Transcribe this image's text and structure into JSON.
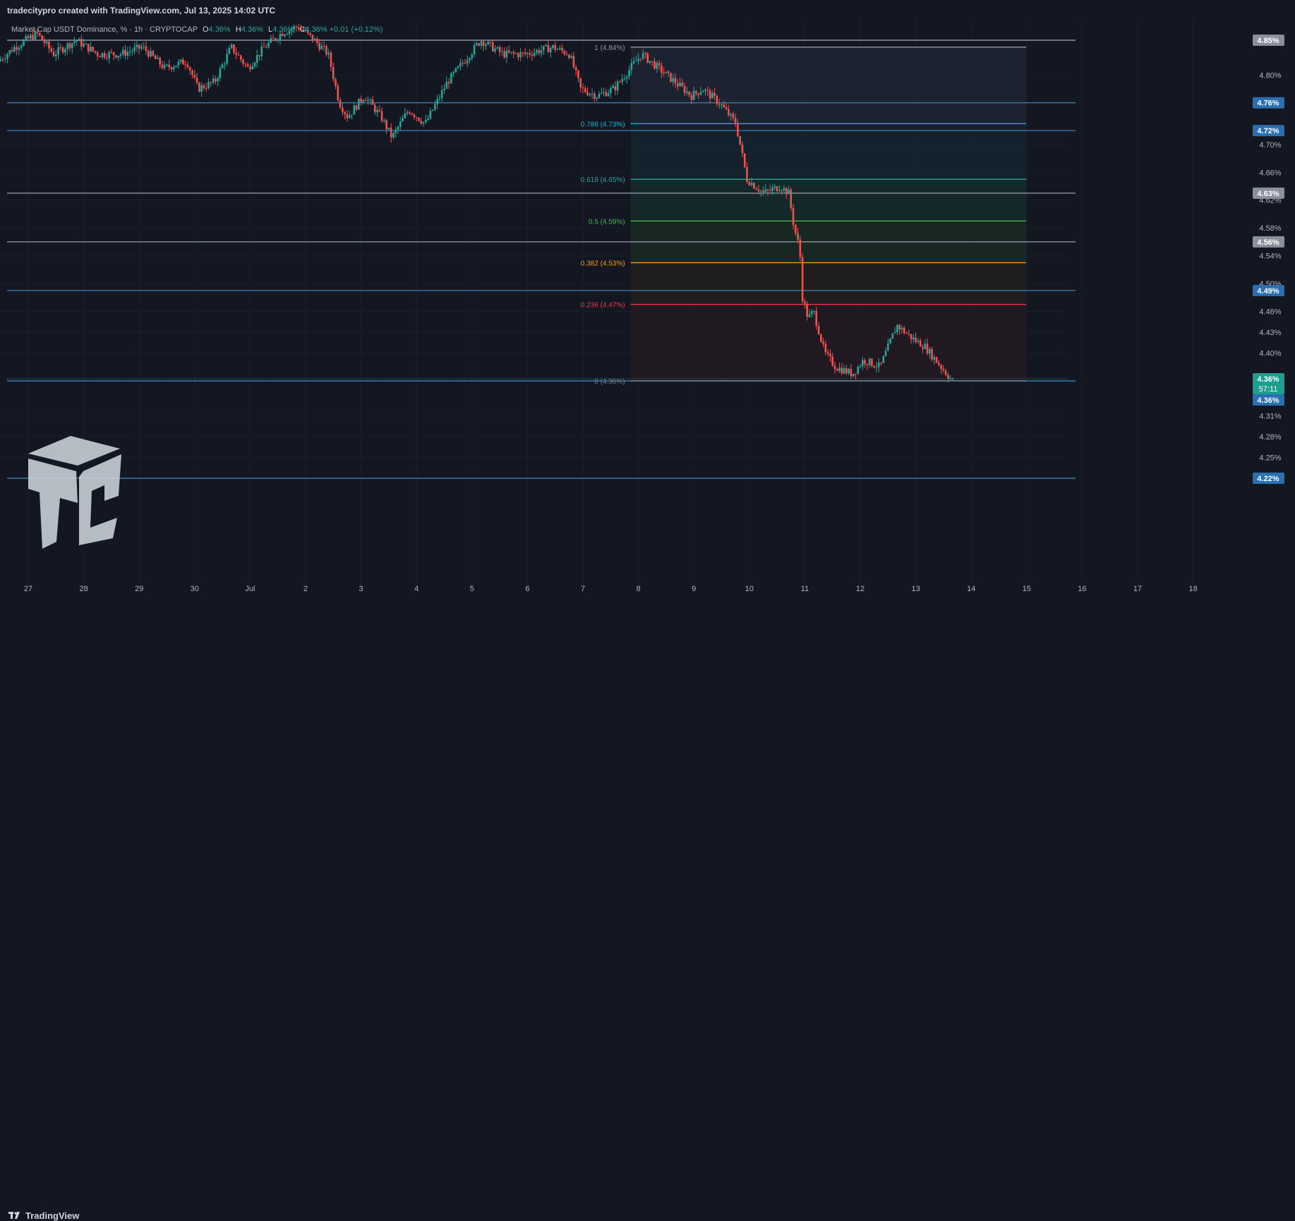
{
  "header": {
    "credit": "tradecitypro created with TradingView.com, Jul 13, 2025 14:02 UTC"
  },
  "legend": {
    "symbol": "Market Cap USDT Dominance, % · 1h · CRYPTOCAP",
    "o_label": "O",
    "o": "4.36%",
    "h_label": "H",
    "h": "4.36%",
    "l_label": "L",
    "l": "4.36%",
    "c_label": "C",
    "c": "4.36%",
    "change": "+0.01 (+0.12%)"
  },
  "footer": {
    "brand": "TradingView"
  },
  "colors": {
    "background": "#131722",
    "up": "#26a69a",
    "down": "#ef5350",
    "hline": "#5b9bd5",
    "grid": "#1e222d",
    "text": "#b2b5be"
  },
  "chart_data": {
    "type": "candlestick",
    "y_range": [
      4.2,
      4.87
    ],
    "x_range_days": [
      26.5,
      48.9
    ],
    "x_ticks": [
      {
        "day": 27,
        "label": "27"
      },
      {
        "day": 28,
        "label": "28"
      },
      {
        "day": 29,
        "label": "29"
      },
      {
        "day": 30,
        "label": "30"
      },
      {
        "day": 31,
        "label": "Jul"
      },
      {
        "day": 32,
        "label": "2"
      },
      {
        "day": 33,
        "label": "3"
      },
      {
        "day": 34,
        "label": "4"
      },
      {
        "day": 35,
        "label": "5"
      },
      {
        "day": 36,
        "label": "6"
      },
      {
        "day": 37,
        "label": "7"
      },
      {
        "day": 38,
        "label": "8"
      },
      {
        "day": 39,
        "label": "9"
      },
      {
        "day": 40,
        "label": "10"
      },
      {
        "day": 41,
        "label": "11"
      },
      {
        "day": 42,
        "label": "12"
      },
      {
        "day": 43,
        "label": "13"
      },
      {
        "day": 44,
        "label": "14"
      },
      {
        "day": 45,
        "label": "15"
      },
      {
        "day": 46,
        "label": "16"
      },
      {
        "day": 47,
        "label": "17"
      },
      {
        "day": 48,
        "label": "18"
      }
    ],
    "y_ticks": [
      {
        "value": 4.8,
        "label": "4.80%"
      },
      {
        "value": 4.7,
        "label": "4.70%"
      },
      {
        "value": 4.66,
        "label": "4.66%"
      },
      {
        "value": 4.62,
        "label": "4.62%"
      },
      {
        "value": 4.58,
        "label": "4.58%"
      },
      {
        "value": 4.54,
        "label": "4.54%"
      },
      {
        "value": 4.5,
        "label": "4.50%"
      },
      {
        "value": 4.46,
        "label": "4.46%"
      },
      {
        "value": 4.43,
        "label": "4.43%"
      },
      {
        "value": 4.4,
        "label": "4.40%"
      },
      {
        "value": 4.31,
        "label": "4.31%"
      },
      {
        "value": 4.28,
        "label": "4.28%"
      },
      {
        "value": 4.25,
        "label": "4.25%"
      }
    ],
    "horizontal_levels": [
      {
        "value": 4.85,
        "label": "4.85%",
        "color": "#9598a1"
      },
      {
        "value": 4.76,
        "label": "4.76%",
        "color": "#2962ff"
      },
      {
        "value": 4.72,
        "label": "4.72%",
        "color": "#2962ff"
      },
      {
        "value": 4.63,
        "label": "4.63%",
        "color": "#9598a1"
      },
      {
        "value": 4.56,
        "label": "4.56%",
        "color": "#9598a1"
      },
      {
        "value": 4.49,
        "label": "4.49%",
        "color": "#2962ff"
      },
      {
        "value": 4.36,
        "label": "4.36%",
        "color": "#2962ff"
      },
      {
        "value": 4.22,
        "label": "4.22%",
        "color": "#2962ff"
      }
    ],
    "price_tag": {
      "value": "4.36%",
      "countdown": "57:11",
      "value2": "4.36%"
    },
    "fib_retracement": {
      "start_day": 38.0,
      "end_day": 45.5,
      "levels": [
        {
          "ratio": "1",
          "price": 4.84,
          "label": "1 (4.84%)",
          "color": "#9598a1"
        },
        {
          "ratio": "0.786",
          "price": 4.73,
          "label": "0.786 (4.73%)",
          "color": "#00bcd4"
        },
        {
          "ratio": "0.618",
          "price": 4.65,
          "label": "0.618 (4.65%)",
          "color": "#26a69a"
        },
        {
          "ratio": "0.5",
          "price": 4.59,
          "label": "0.5 (4.59%)",
          "color": "#4caf50"
        },
        {
          "ratio": "0.382",
          "price": 4.53,
          "label": "0.382 (4.53%)",
          "color": "#ff9800"
        },
        {
          "ratio": "0.236",
          "price": 4.47,
          "label": "0.236 (4.47%)",
          "color": "#f23645"
        },
        {
          "ratio": "0",
          "price": 4.36,
          "label": "0 (4.36%)",
          "color": "#787b86"
        }
      ]
    },
    "price_path": [
      [
        26.5,
        4.82
      ],
      [
        26.8,
        4.84
      ],
      [
        27.2,
        4.86
      ],
      [
        27.5,
        4.83
      ],
      [
        27.9,
        4.85
      ],
      [
        28.3,
        4.83
      ],
      [
        28.7,
        4.83
      ],
      [
        29.1,
        4.84
      ],
      [
        29.5,
        4.81
      ],
      [
        29.9,
        4.82
      ],
      [
        30.1,
        4.78
      ],
      [
        30.4,
        4.79
      ],
      [
        30.7,
        4.84
      ],
      [
        31.0,
        4.81
      ],
      [
        31.3,
        4.84
      ],
      [
        31.6,
        4.86
      ],
      [
        31.9,
        4.87
      ],
      [
        32.2,
        4.85
      ],
      [
        32.45,
        4.83
      ],
      [
        32.65,
        4.76
      ],
      [
        32.8,
        4.74
      ],
      [
        33.1,
        4.77
      ],
      [
        33.4,
        4.74
      ],
      [
        33.6,
        4.71
      ],
      [
        33.9,
        4.75
      ],
      [
        34.2,
        4.73
      ],
      [
        34.6,
        4.79
      ],
      [
        34.9,
        4.82
      ],
      [
        35.2,
        4.85
      ],
      [
        35.6,
        4.83
      ],
      [
        36.0,
        4.83
      ],
      [
        36.5,
        4.84
      ],
      [
        36.8,
        4.83
      ],
      [
        37.0,
        4.78
      ],
      [
        37.3,
        4.77
      ],
      [
        37.6,
        4.78
      ],
      [
        37.9,
        4.81
      ],
      [
        38.1,
        4.83
      ],
      [
        38.4,
        4.81
      ],
      [
        38.7,
        4.79
      ],
      [
        39.0,
        4.77
      ],
      [
        39.2,
        4.78
      ],
      [
        39.5,
        4.76
      ],
      [
        39.8,
        4.73
      ],
      [
        40.0,
        4.65
      ],
      [
        40.3,
        4.63
      ],
      [
        40.6,
        4.64
      ],
      [
        40.75,
        4.63
      ],
      [
        40.85,
        4.58
      ],
      [
        40.95,
        4.55
      ],
      [
        41.0,
        4.48
      ],
      [
        41.1,
        4.45
      ],
      [
        41.2,
        4.46
      ],
      [
        41.4,
        4.4
      ],
      [
        41.6,
        4.38
      ],
      [
        41.9,
        4.37
      ],
      [
        42.1,
        4.39
      ],
      [
        42.4,
        4.38
      ],
      [
        42.7,
        4.44
      ],
      [
        43.0,
        4.42
      ],
      [
        43.2,
        4.41
      ],
      [
        43.4,
        4.39
      ],
      [
        43.6,
        4.37
      ],
      [
        43.7,
        4.36
      ]
    ]
  }
}
